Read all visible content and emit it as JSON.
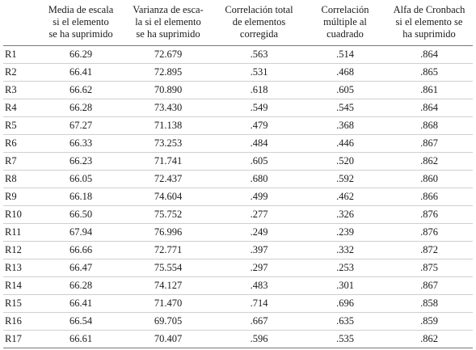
{
  "table": {
    "headers": [
      "",
      "Media de escala si el elemento se ha suprimido",
      "Varianza de esca-la si el elemento se ha suprimido",
      "Correlación total de elementos corregida",
      "Correlación múltiple al cuadrado",
      "Alfa de Cronbach si el elemento se ha suprimido"
    ],
    "header_lines": [
      [],
      [
        "Media de escala",
        "si el elemento",
        "se ha suprimido"
      ],
      [
        "Varianza de esca-",
        "la si el elemento",
        "se ha suprimido"
      ],
      [
        "Correlación total",
        "de elementos",
        "corregida"
      ],
      [
        "Correlación",
        "múltiple al",
        "cuadrado"
      ],
      [
        "Alfa de Cronbach",
        "si el elemento se",
        "ha suprimido"
      ]
    ],
    "rows": [
      [
        "R1",
        "66.29",
        "72.679",
        ".563",
        ".514",
        ".864"
      ],
      [
        "R2",
        "66.41",
        "72.895",
        ".531",
        ".468",
        ".865"
      ],
      [
        "R3",
        "66.62",
        "70.890",
        ".618",
        ".605",
        ".861"
      ],
      [
        "R4",
        "66.28",
        "73.430",
        ".549",
        ".545",
        ".864"
      ],
      [
        "R5",
        "67.27",
        "71.138",
        ".479",
        ".368",
        ".868"
      ],
      [
        "R6",
        "66.33",
        "73.253",
        ".484",
        ".446",
        ".867"
      ],
      [
        "R7",
        "66.23",
        "71.741",
        ".605",
        ".520",
        ".862"
      ],
      [
        "R8",
        "66.05",
        "72.437",
        ".680",
        ".592",
        ".860"
      ],
      [
        "R9",
        "66.18",
        "74.604",
        ".499",
        ".462",
        ".866"
      ],
      [
        "R10",
        "66.50",
        "75.752",
        ".277",
        ".326",
        ".876"
      ],
      [
        "R11",
        "67.94",
        "76.996",
        ".249",
        ".239",
        ".876"
      ],
      [
        "R12",
        "66.66",
        "72.771",
        ".397",
        ".332",
        ".872"
      ],
      [
        "R13",
        "66.47",
        "75.554",
        ".297",
        ".253",
        ".875"
      ],
      [
        "R14",
        "66.28",
        "74.127",
        ".483",
        ".301",
        ".867"
      ],
      [
        "R15",
        "66.41",
        "71.470",
        ".714",
        ".696",
        ".858"
      ],
      [
        "R16",
        "66.54",
        "69.705",
        ".667",
        ".635",
        ".859"
      ],
      [
        "R17",
        "66.61",
        "70.407",
        ".596",
        ".535",
        ".862"
      ]
    ]
  }
}
